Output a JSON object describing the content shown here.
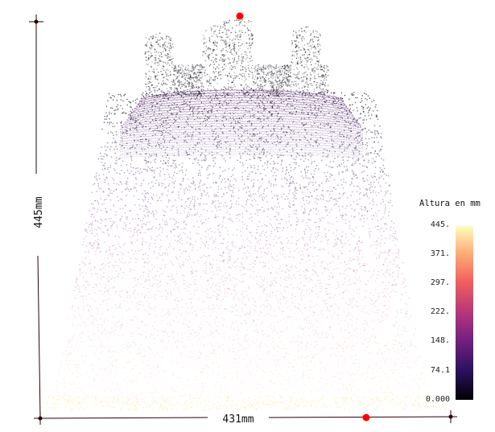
{
  "dimensions": {
    "height_label": "445mm",
    "width_label": "431mm"
  },
  "colorbar": {
    "title": "Altura en mm",
    "ticks": [
      "445.",
      "371.",
      "297.",
      "222.",
      "148.",
      "74.1",
      "0.000"
    ],
    "colormap": "magma",
    "min_color": "#000004",
    "max_color": "#fcfdbf"
  },
  "markers": {
    "color": "#ff0000"
  }
}
